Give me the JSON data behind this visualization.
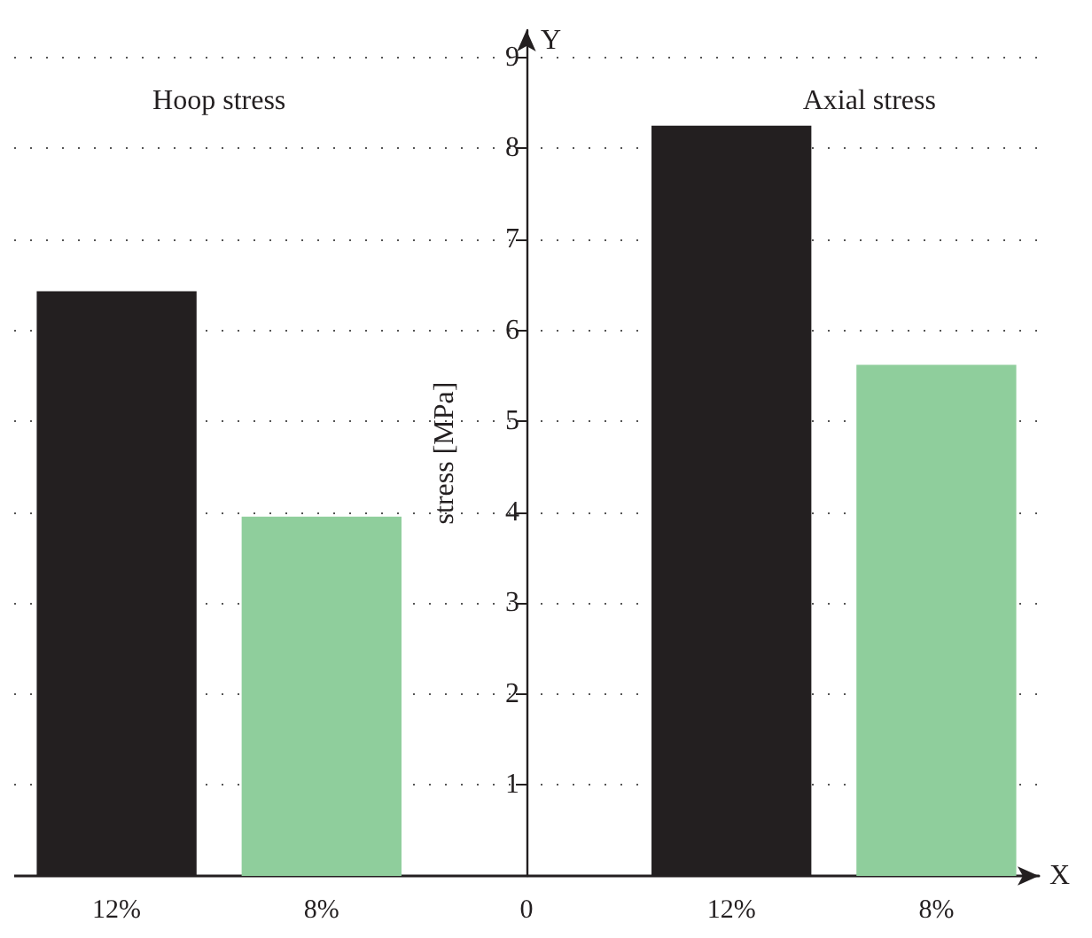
{
  "chart_data": {
    "type": "bar",
    "xlabel": "X",
    "ylabel": "stress [MPa]",
    "categories": [
      "12%",
      "8%",
      "0",
      "12%",
      "8%"
    ],
    "values": [
      6.43,
      3.95,
      null,
      8.25,
      5.62
    ],
    "colors": [
      "#231f20",
      "#8fce9c",
      "#8fce9c",
      "#231f20",
      "#8fce9c"
    ],
    "ylim": [
      0,
      9.3
    ],
    "yticks": [
      1,
      2,
      3,
      4,
      5,
      6,
      7,
      8,
      9
    ],
    "grid": "y",
    "annotations": [
      "Hoop stress",
      "Axial stress",
      "Y"
    ]
  }
}
